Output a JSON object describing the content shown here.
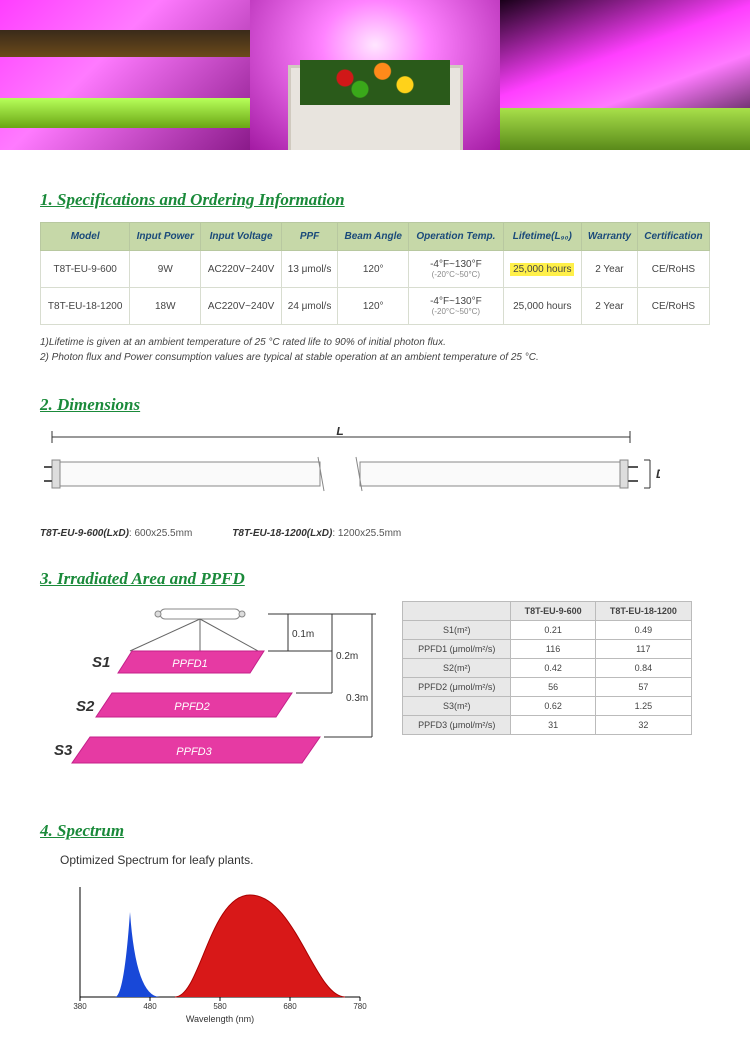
{
  "colors": {
    "heading": "#1a8a3a",
    "th_bg": "#c6d8a8",
    "th_text": "#1a4a7a",
    "highlight": "#fff04a",
    "ppfd_bar": "#e63aa3",
    "ppfd_bar_dark": "#c4208a",
    "blue_peak": "#1848d8",
    "red_peak": "#d81818"
  },
  "sections": {
    "spec_title": "1. Specifications and Ordering Information",
    "dim_title": "2. Dimensions",
    "ppfd_title": "3. Irradiated Area and PPFD",
    "spectrum_title": "4. Spectrum"
  },
  "spec_table": {
    "headers": [
      "Model",
      "Input Power",
      "Input Voltage",
      "PPF",
      "Beam Angle",
      "Operation Temp.",
      "Lifetime(L₉₀)",
      "Warranty",
      "Certification"
    ],
    "rows": [
      {
        "model": "T8T-EU-9-600",
        "power": "9W",
        "voltage": "AC220V~240V",
        "ppf": "13 μmol/s",
        "beam": "120°",
        "temp_f": "-4°F~130°F",
        "temp_c": "(-20°C~50°C)",
        "life": "25,000 hours",
        "life_hl": true,
        "warranty": "2 Year",
        "cert": "CE/RoHS"
      },
      {
        "model": "T8T-EU-18-1200",
        "power": "18W",
        "voltage": "AC220V~240V",
        "ppf": "24 μmol/s",
        "beam": "120°",
        "temp_f": "-4°F~130°F",
        "temp_c": "(-20°C~50°C)",
        "life": "25,000 hours",
        "life_hl": false,
        "warranty": "2 Year",
        "cert": "CE/RoHS"
      }
    ],
    "notes": [
      "1)Lifetime is given at an ambient temperature of 25 °C rated life to 90% of initial photon flux.",
      "2) Photon flux and Power consumption values are typical at stable operation at an ambient temperature of 25 °C."
    ]
  },
  "dimensions": {
    "L_label": "L",
    "D_label": "D",
    "items": [
      {
        "name": "T8T-EU-9-600(LxD)",
        "value": "600x25.5mm"
      },
      {
        "name": "T8T-EU-18-1200(LxD)",
        "value": "1200x25.5mm"
      }
    ]
  },
  "ppfd": {
    "s_labels": [
      "S1",
      "S2",
      "S3"
    ],
    "bar_labels": [
      "PPFD1",
      "PPFD2",
      "PPFD3"
    ],
    "dists": [
      "0.1m",
      "0.2m",
      "0.3m"
    ],
    "table": {
      "col_headers": [
        "",
        "T8T-EU-9-600",
        "T8T-EU-18-1200"
      ],
      "rows": [
        {
          "label": "S1(m²)",
          "a": "0.21",
          "b": "0.49"
        },
        {
          "label": "PPFD1 (μmol/m²/s)",
          "a": "116",
          "b": "117"
        },
        {
          "label": "S2(m²)",
          "a": "0.42",
          "b": "0.84"
        },
        {
          "label": "PPFD2 (μmol/m²/s)",
          "a": "56",
          "b": "57"
        },
        {
          "label": "S3(m²)",
          "a": "0.62",
          "b": "1.25"
        },
        {
          "label": "PPFD3 (μmol/m²/s)",
          "a": "31",
          "b": "32"
        }
      ]
    }
  },
  "spectrum": {
    "note": "Optimized Spectrum for leafy plants.",
    "x_label": "Wavelength (nm)",
    "ticks": [
      "380",
      "480",
      "580",
      "680",
      "780"
    ],
    "blue_peak_nm": 450,
    "red_peak_nm": 660
  }
}
